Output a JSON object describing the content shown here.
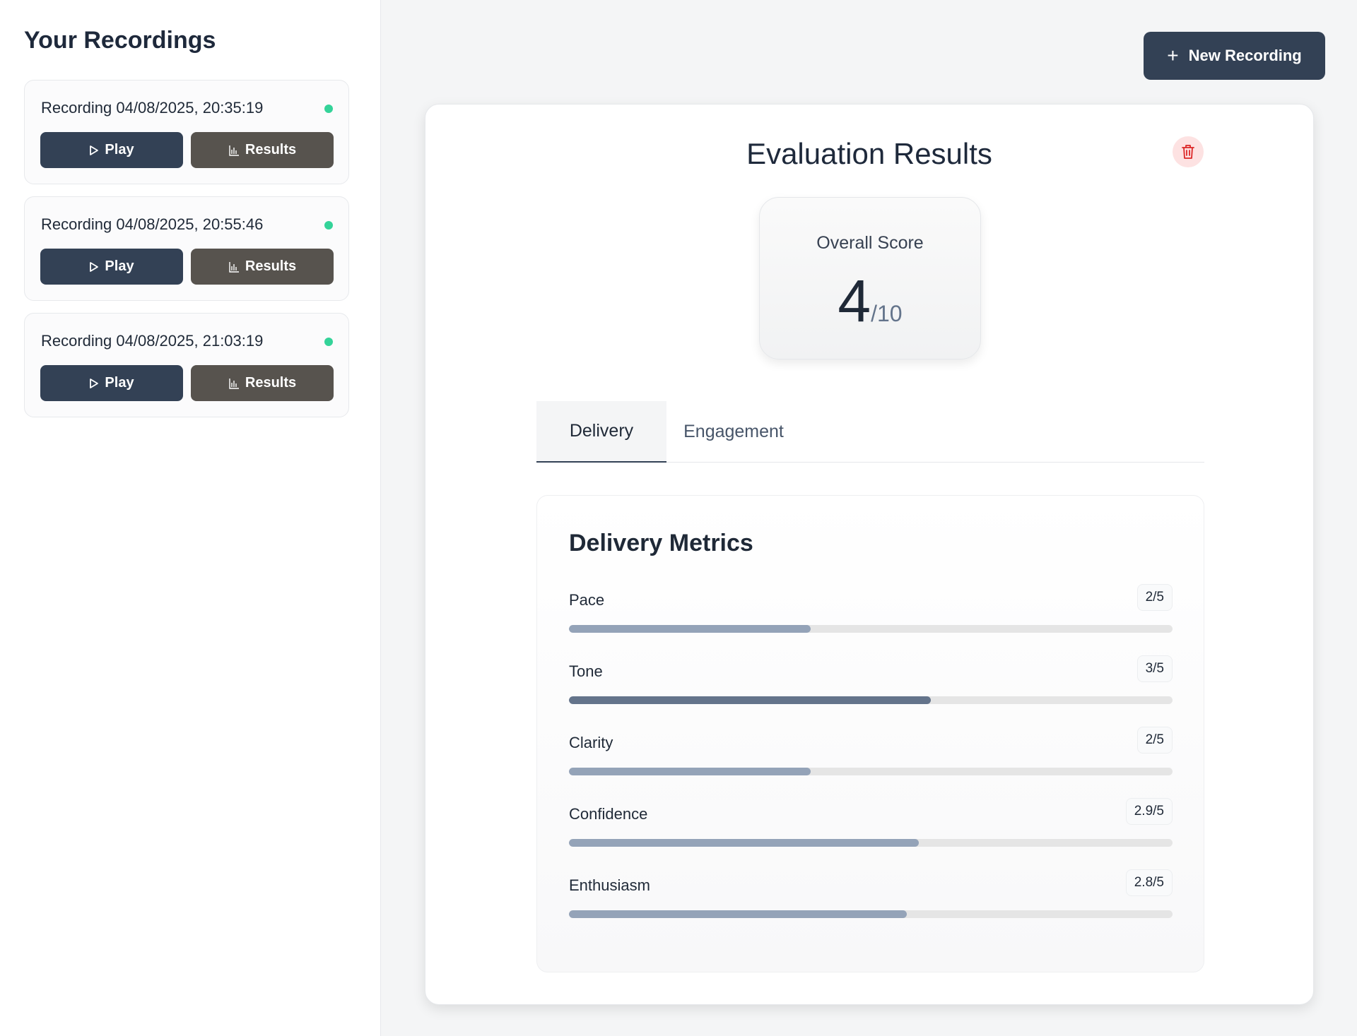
{
  "sidebar": {
    "title": "Your Recordings",
    "recordings": [
      {
        "title": "Recording 04/08/2025, 20:35:19",
        "play_label": "Play",
        "results_label": "Results",
        "status_color": "#34d399"
      },
      {
        "title": "Recording 04/08/2025, 20:55:46",
        "play_label": "Play",
        "results_label": "Results",
        "status_color": "#34d399"
      },
      {
        "title": "Recording 04/08/2025, 21:03:19",
        "play_label": "Play",
        "results_label": "Results",
        "status_color": "#34d399"
      }
    ]
  },
  "header": {
    "new_recording_label": "New Recording"
  },
  "results": {
    "title": "Evaluation Results",
    "overall_label": "Overall Score",
    "overall_value": "4",
    "overall_max": "/10",
    "tabs": [
      {
        "label": "Delivery",
        "active": true
      },
      {
        "label": "Engagement",
        "active": false
      }
    ],
    "metrics_title": "Delivery Metrics",
    "metrics": [
      {
        "label": "Pace",
        "score": "2/5",
        "value": 2,
        "max": 5,
        "color": "#94a3b8"
      },
      {
        "label": "Tone",
        "score": "3/5",
        "value": 3,
        "max": 5,
        "color": "#64748b"
      },
      {
        "label": "Clarity",
        "score": "2/5",
        "value": 2,
        "max": 5,
        "color": "#94a3b8"
      },
      {
        "label": "Confidence",
        "score": "2.9/5",
        "value": 2.9,
        "max": 5,
        "color": "#94a3b8"
      },
      {
        "label": "Enthusiasm",
        "score": "2.8/5",
        "value": 2.8,
        "max": 5,
        "color": "#94a3b8"
      }
    ]
  },
  "colors": {
    "primary": "#334155",
    "secondary": "#57534e",
    "status_ok": "#34d399",
    "danger_bg": "#fde2e2",
    "danger": "#dc2626"
  },
  "icons": {
    "play": "play-icon",
    "results": "bar-chart-icon",
    "add": "plus-icon",
    "delete": "trash-icon"
  }
}
